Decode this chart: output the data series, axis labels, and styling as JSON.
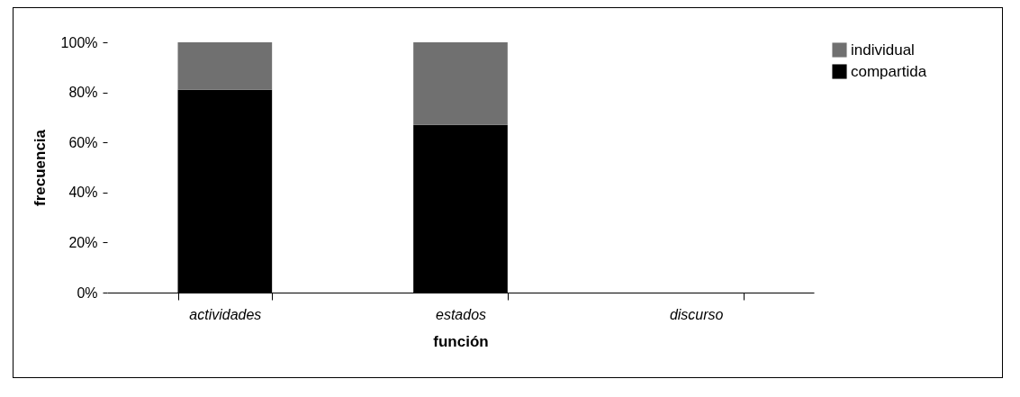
{
  "chart_data": {
    "type": "bar",
    "stacked": true,
    "xlabel": "función",
    "ylabel": "frecuencia",
    "categories": [
      "actividades",
      "estados",
      "discurso"
    ],
    "series": [
      {
        "name": "compartida",
        "color": "#000000",
        "values": [
          81,
          67,
          null
        ]
      },
      {
        "name": "individual",
        "color": "#707070",
        "values": [
          19,
          33,
          null
        ]
      }
    ],
    "ylim": [
      0,
      100
    ],
    "yticks": [
      {
        "value": 0,
        "label": "0%"
      },
      {
        "value": 20,
        "label": "20%"
      },
      {
        "value": 40,
        "label": "40%"
      },
      {
        "value": 60,
        "label": "60%"
      },
      {
        "value": 80,
        "label": "80%"
      },
      {
        "value": 100,
        "label": "100%"
      }
    ],
    "grid": false,
    "legend": "right"
  }
}
